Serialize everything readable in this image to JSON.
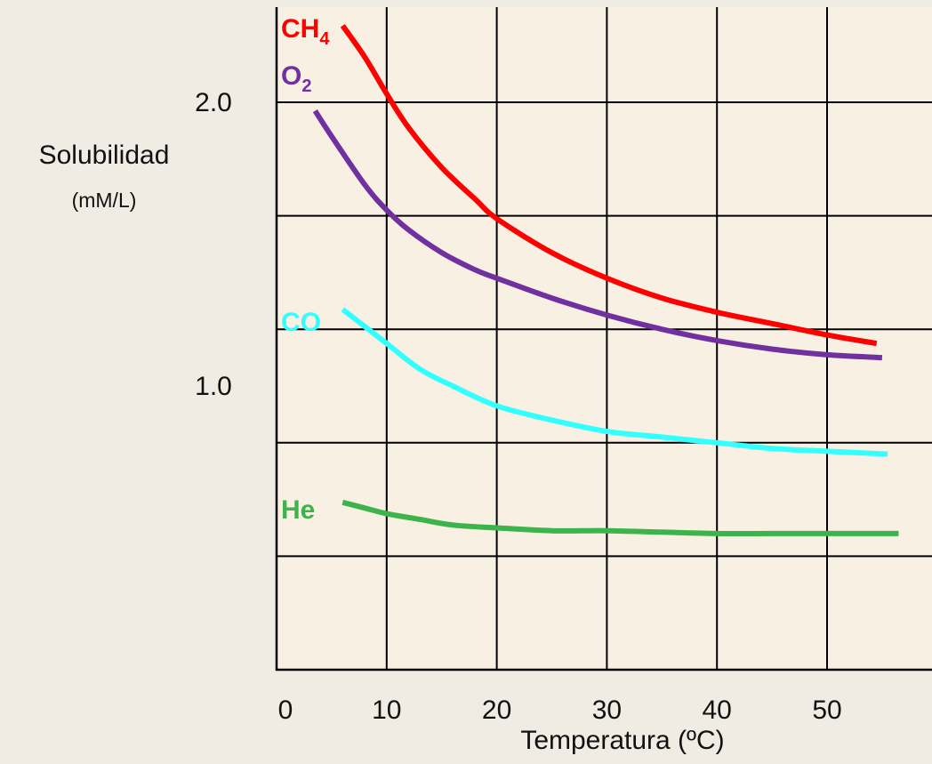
{
  "chart_data": {
    "type": "line",
    "xlabel": "Temperatura (ºC)",
    "ylabel": "Solubilidad",
    "ylabel_unit": "(mM/L)",
    "xlim": [
      0,
      60
    ],
    "ylim": [
      0,
      2.4
    ],
    "x_ticks": [
      0,
      10,
      20,
      30,
      40,
      50
    ],
    "x_tick_labels": [
      "0",
      "10",
      "20",
      "30",
      "40",
      "50"
    ],
    "y_tick_values": [
      1.0,
      2.0
    ],
    "y_tick_labels": [
      "1.0",
      "2.0"
    ],
    "y_gridlines": [
      0.4,
      0.8,
      1.2,
      1.6,
      2.0
    ],
    "grid": true,
    "series": [
      {
        "key": "ch4",
        "label": "CH",
        "label_sub": "4",
        "color": "#ff0000",
        "x": [
          6,
          8,
          10,
          12,
          15,
          18,
          20,
          25,
          30,
          35,
          40,
          45,
          50,
          54.5
        ],
        "y": [
          2.27,
          2.16,
          2.03,
          1.91,
          1.77,
          1.66,
          1.59,
          1.47,
          1.38,
          1.31,
          1.26,
          1.22,
          1.18,
          1.15
        ]
      },
      {
        "key": "o2",
        "label": "O",
        "label_sub": "2",
        "color": "#7030a0",
        "x": [
          3.5,
          5,
          8,
          10,
          12,
          15,
          18,
          20,
          25,
          30,
          35,
          40,
          45,
          50,
          55
        ],
        "y": [
          1.97,
          1.88,
          1.71,
          1.62,
          1.55,
          1.47,
          1.41,
          1.38,
          1.31,
          1.25,
          1.2,
          1.16,
          1.13,
          1.11,
          1.1
        ]
      },
      {
        "key": "co",
        "label": "CO",
        "label_sub": "",
        "color": "#33ffff",
        "x": [
          6,
          8,
          10,
          13,
          16,
          20,
          25,
          30,
          35,
          40,
          45,
          50,
          55.5
        ],
        "y": [
          1.27,
          1.21,
          1.15,
          1.06,
          1.0,
          0.93,
          0.88,
          0.84,
          0.82,
          0.8,
          0.78,
          0.77,
          0.76
        ]
      },
      {
        "key": "he",
        "label": "He",
        "label_sub": "",
        "color": "#3cb44b",
        "x": [
          6,
          8,
          10,
          13,
          16,
          20,
          25,
          30,
          35,
          40,
          45,
          50,
          56.5
        ],
        "y": [
          0.59,
          0.57,
          0.55,
          0.53,
          0.51,
          0.5,
          0.49,
          0.49,
          0.485,
          0.48,
          0.48,
          0.48,
          0.48
        ]
      }
    ]
  }
}
